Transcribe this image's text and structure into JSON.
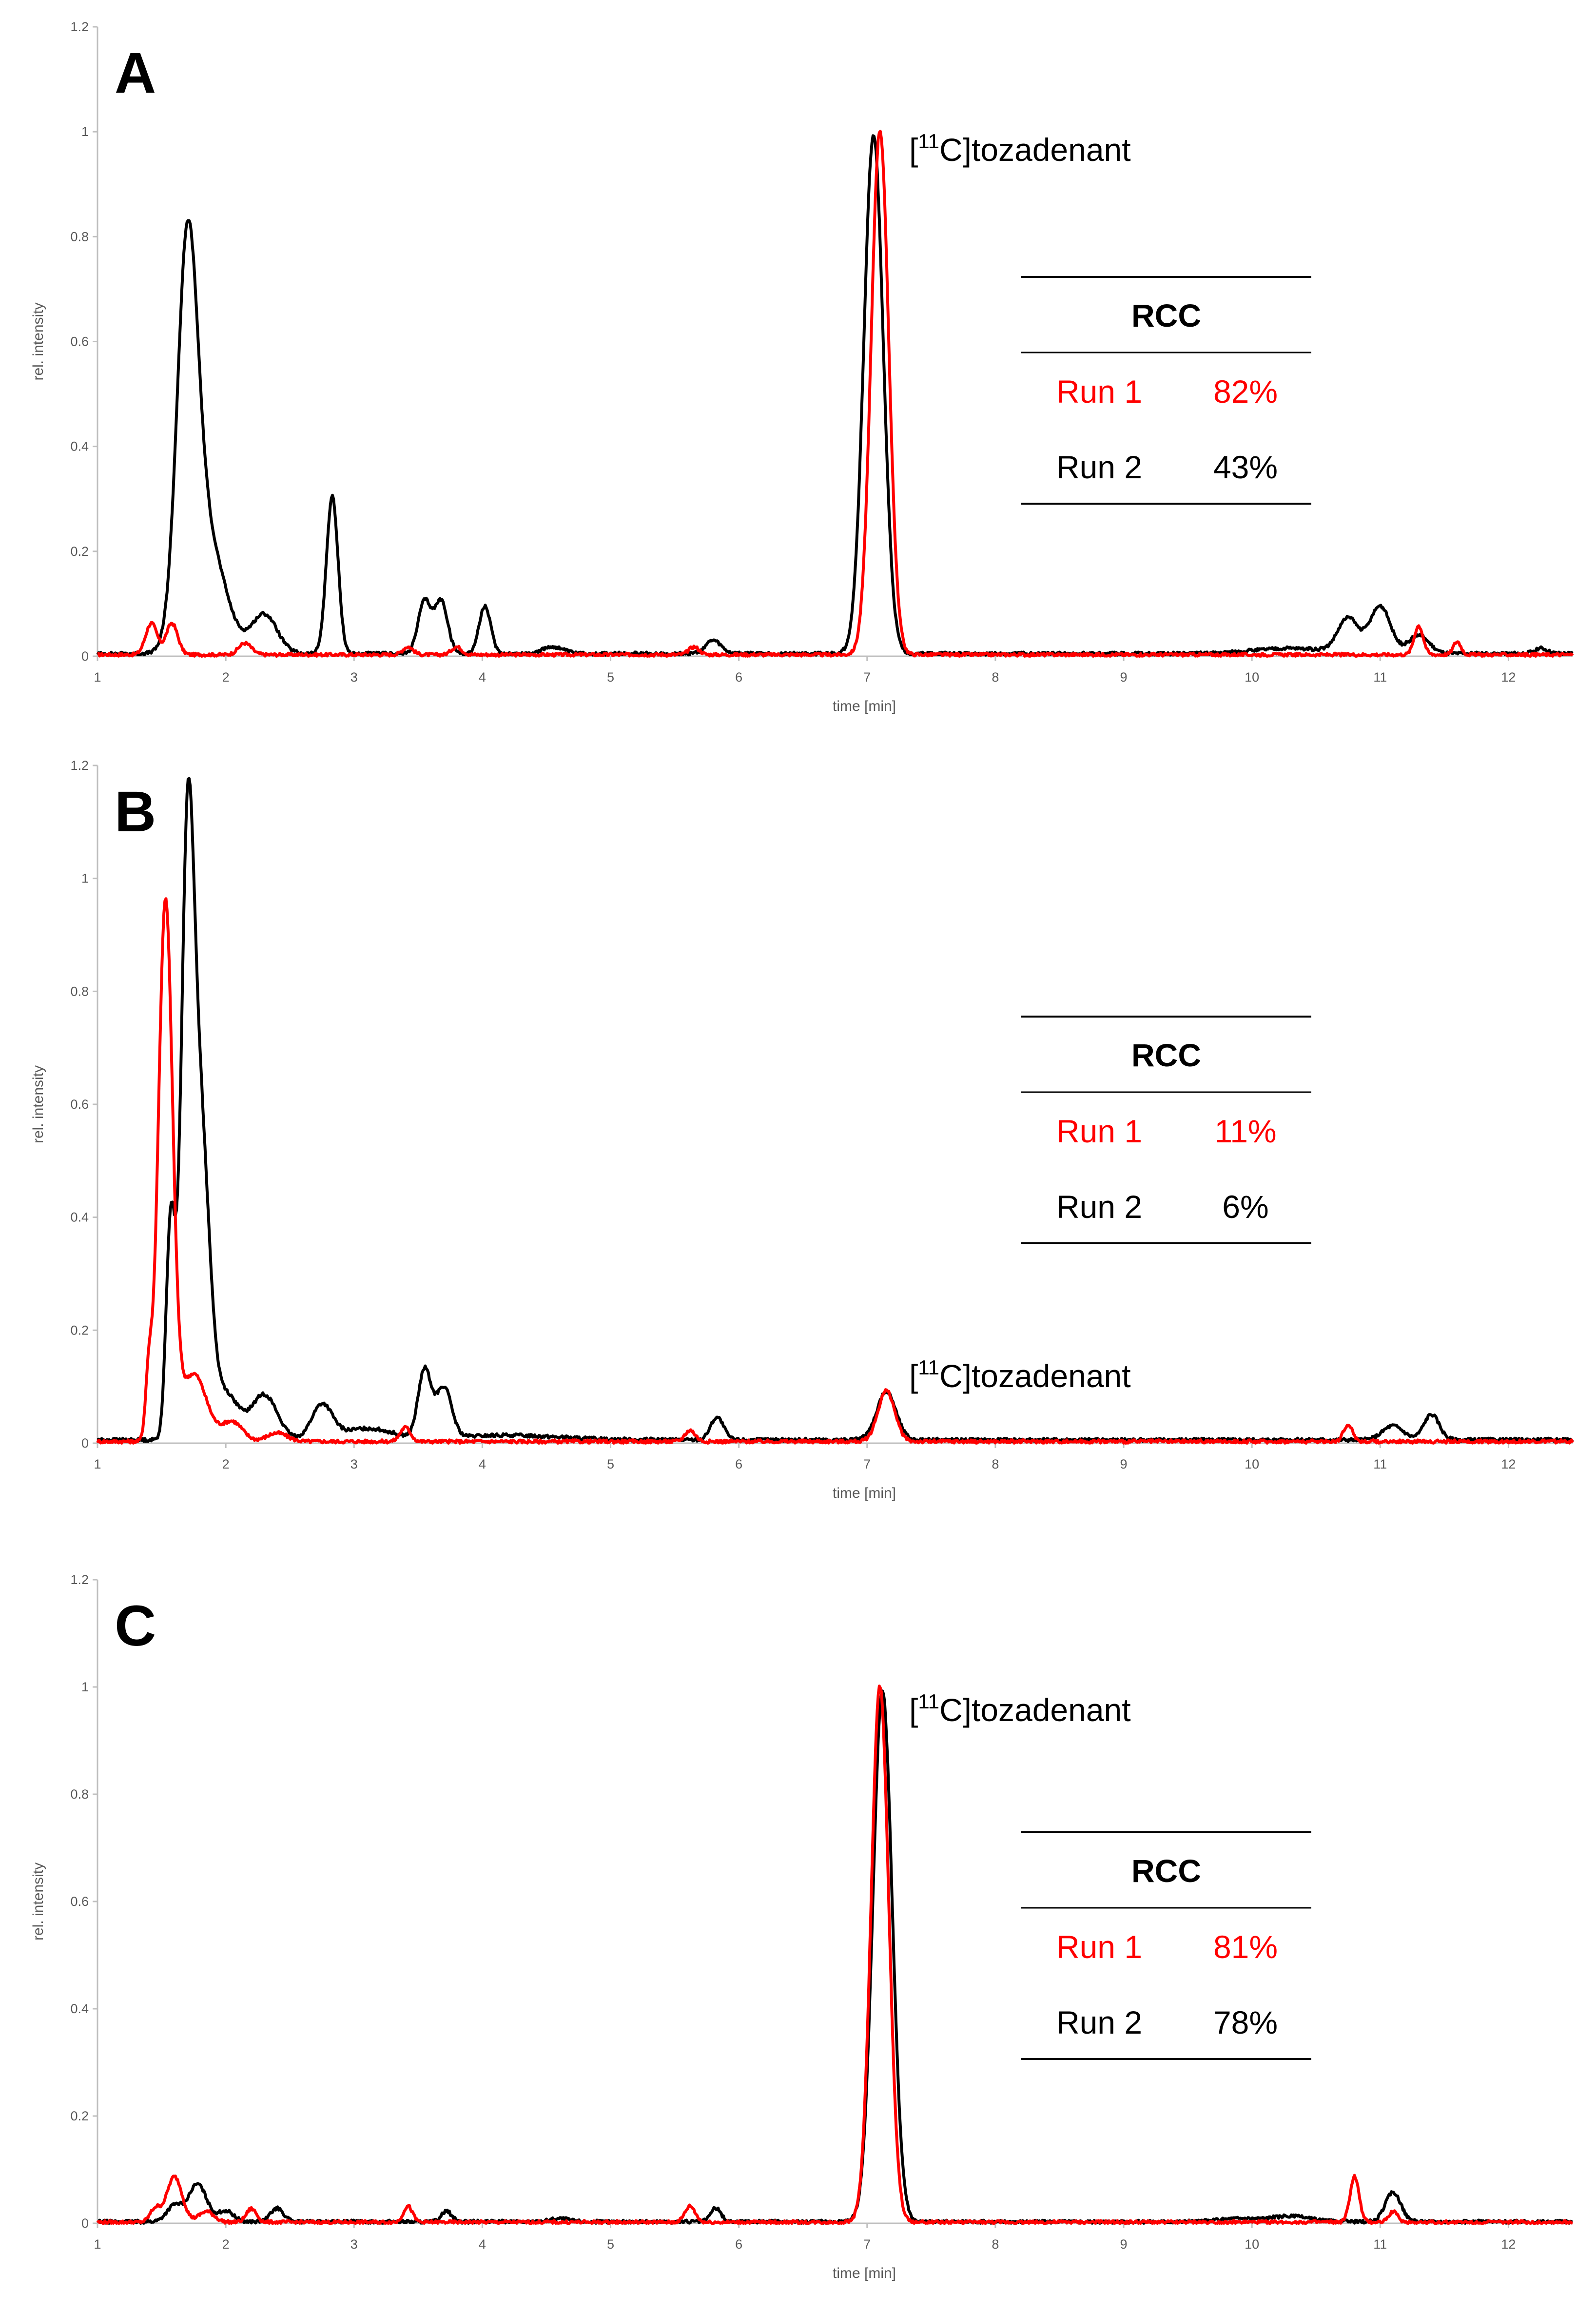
{
  "colors": {
    "run1": "#ff0000",
    "run2": "#000000",
    "axis": "#bfbfbf",
    "tick_text": "#595959"
  },
  "chart_data": [
    {
      "type": "line",
      "panel": "A",
      "xlabel": "time [min]",
      "ylabel": "rel. intensity",
      "xlim": [
        1,
        12.5
      ],
      "ylim": [
        0,
        1.2
      ],
      "x_ticks": [
        1,
        2,
        3,
        4,
        5,
        6,
        7,
        8,
        9,
        10,
        11,
        12
      ],
      "y_ticks": [
        0,
        0.2,
        0.4,
        0.6,
        0.8,
        1,
        1.2
      ],
      "x_tick_labels": [
        "1",
        "2",
        "3",
        "4",
        "5",
        "6",
        "7",
        "8",
        "9",
        "10",
        "11",
        "12"
      ],
      "y_tick_labels": [
        "0",
        "0.2",
        "0.4",
        "0.6",
        "0.8",
        "1",
        "1.2"
      ],
      "peak_label": {
        "prefix": "[",
        "sup": "11",
        "suffix": "C]tozadenant",
        "x": 7.05,
        "y": 1.0
      },
      "rcc_table": {
        "header": "RCC",
        "rows": [
          {
            "run": "Run 1",
            "value": "82%"
          },
          {
            "run": "Run 2",
            "value": "43%"
          }
        ]
      },
      "series": [
        {
          "name": "Run 1",
          "color": "#ff0000",
          "baseline": 0.003,
          "peaks": [
            [
              1.42,
              0.06,
              0.045
            ],
            [
              1.58,
              0.06,
              0.045
            ],
            [
              2.15,
              0.022,
              0.05
            ],
            [
              3.42,
              0.015,
              0.04
            ],
            [
              3.8,
              0.015,
              0.04
            ],
            [
              5.65,
              0.015,
              0.04
            ],
            [
              7.1,
              1.0,
              0.068
            ],
            [
              11.3,
              0.055,
              0.035
            ],
            [
              11.6,
              0.025,
              0.03
            ]
          ]
        },
        {
          "name": "Run 2",
          "color": "#000000",
          "baseline": 0.005,
          "peaks": [
            [
              1.7,
              0.7,
              0.08
            ],
            [
              1.85,
              0.22,
              0.14
            ],
            [
              2.3,
              0.075,
              0.1
            ],
            [
              2.83,
              0.3,
              0.045
            ],
            [
              3.55,
              0.1,
              0.05
            ],
            [
              3.68,
              0.1,
              0.05
            ],
            [
              4.02,
              0.09,
              0.045
            ],
            [
              4.55,
              0.013,
              0.08
            ],
            [
              5.8,
              0.025,
              0.06
            ],
            [
              7.05,
              0.99,
              0.075
            ],
            [
              10.75,
              0.065,
              0.08
            ],
            [
              11.0,
              0.09,
              0.08
            ],
            [
              11.3,
              0.035,
              0.08
            ],
            [
              10.3,
              0.01,
              0.3
            ],
            [
              12.25,
              0.01,
              0.05
            ]
          ]
        }
      ]
    },
    {
      "type": "line",
      "panel": "B",
      "xlabel": "time [min]",
      "ylabel": "rel. intensity",
      "xlim": [
        1,
        12.5
      ],
      "ylim": [
        0,
        1.2
      ],
      "x_ticks": [
        1,
        2,
        3,
        4,
        5,
        6,
        7,
        8,
        9,
        10,
        11,
        12
      ],
      "y_ticks": [
        0,
        0.2,
        0.4,
        0.6,
        0.8,
        1,
        1.2
      ],
      "x_tick_labels": [
        "1",
        "2",
        "3",
        "4",
        "5",
        "6",
        "7",
        "8",
        "9",
        "10",
        "11",
        "12"
      ],
      "y_tick_labels": [
        "0",
        "0.2",
        "0.4",
        "0.6",
        "0.8",
        "1",
        "1.2"
      ],
      "peak_label": {
        "prefix": "[",
        "sup": "11",
        "suffix": "C]tozadenant",
        "x": 7.15,
        "y": 0.09
      },
      "rcc_table": {
        "header": "RCC",
        "rows": [
          {
            "run": "Run 1",
            "value": "11%"
          },
          {
            "run": "Run 2",
            "value": "6%"
          }
        ]
      },
      "series": [
        {
          "name": "Run 1",
          "color": "#ff0000",
          "baseline": 0.003,
          "peaks": [
            [
              1.4,
              0.11,
              0.025
            ],
            [
              1.53,
              0.95,
              0.055
            ],
            [
              1.75,
              0.12,
              0.1
            ],
            [
              2.05,
              0.035,
              0.08
            ],
            [
              2.4,
              0.015,
              0.08
            ],
            [
              3.4,
              0.025,
              0.04
            ],
            [
              5.62,
              0.02,
              0.04
            ],
            [
              7.15,
              0.09,
              0.065
            ],
            [
              10.75,
              0.03,
              0.035
            ]
          ]
        },
        {
          "name": "Run 2",
          "color": "#000000",
          "baseline": 0.006,
          "peaks": [
            [
              1.57,
              0.38,
              0.035
            ],
            [
              1.7,
              0.95,
              0.05
            ],
            [
              1.8,
              0.55,
              0.07
            ],
            [
              2.0,
              0.08,
              0.1
            ],
            [
              2.3,
              0.08,
              0.1
            ],
            [
              2.75,
              0.06,
              0.08
            ],
            [
              3.1,
              0.02,
              0.2
            ],
            [
              3.55,
              0.12,
              0.05
            ],
            [
              3.7,
              0.09,
              0.06
            ],
            [
              4.2,
              0.008,
              0.4
            ],
            [
              5.83,
              0.04,
              0.05
            ],
            [
              7.15,
              0.085,
              0.075
            ],
            [
              11.1,
              0.025,
              0.08
            ],
            [
              11.4,
              0.045,
              0.06
            ]
          ]
        }
      ]
    },
    {
      "type": "line",
      "panel": "C",
      "xlabel": "time [min]",
      "ylabel": "rel. intensity",
      "xlim": [
        1,
        12.5
      ],
      "ylim": [
        0,
        1.2
      ],
      "x_ticks": [
        1,
        2,
        3,
        4,
        5,
        6,
        7,
        8,
        9,
        10,
        11,
        12
      ],
      "y_ticks": [
        0,
        0.2,
        0.4,
        0.6,
        0.8,
        1,
        1.2
      ],
      "x_tick_labels": [
        "1",
        "2",
        "3",
        "4",
        "5",
        "6",
        "7",
        "8",
        "9",
        "10",
        "11",
        "12"
      ],
      "y_tick_labels": [
        "0",
        "0.2",
        "0.4",
        "0.6",
        "0.8",
        "1",
        "1.2"
      ],
      "peak_label": {
        "prefix": "[",
        "sup": "11",
        "suffix": "C]tozadenant",
        "x": 7.1,
        "y": 1.0
      },
      "rcc_table": {
        "header": "RCC",
        "rows": [
          {
            "run": "Run 1",
            "value": "81%"
          },
          {
            "run": "Run 2",
            "value": "78%"
          }
        ]
      },
      "series": [
        {
          "name": "Run 1",
          "color": "#ff0000",
          "baseline": 0.002,
          "peaks": [
            [
              1.45,
              0.025,
              0.04
            ],
            [
              1.6,
              0.085,
              0.06
            ],
            [
              1.85,
              0.02,
              0.06
            ],
            [
              2.2,
              0.025,
              0.04
            ],
            [
              3.42,
              0.03,
              0.035
            ],
            [
              5.62,
              0.03,
              0.04
            ],
            [
              7.1,
              1.0,
              0.068
            ],
            [
              10.8,
              0.085,
              0.035
            ],
            [
              11.1,
              0.02,
              0.035
            ]
          ]
        },
        {
          "name": "Run 2",
          "color": "#000000",
          "baseline": 0.003,
          "peaks": [
            [
              1.6,
              0.03,
              0.06
            ],
            [
              1.78,
              0.07,
              0.07
            ],
            [
              2.0,
              0.02,
              0.06
            ],
            [
              2.4,
              0.025,
              0.05
            ],
            [
              3.72,
              0.02,
              0.04
            ],
            [
              4.6,
              0.006,
              0.08
            ],
            [
              5.82,
              0.025,
              0.04
            ],
            [
              7.12,
              0.99,
              0.075
            ],
            [
              9.9,
              0.006,
              0.15
            ],
            [
              10.3,
              0.01,
              0.15
            ],
            [
              11.1,
              0.055,
              0.06
            ]
          ]
        }
      ]
    }
  ]
}
